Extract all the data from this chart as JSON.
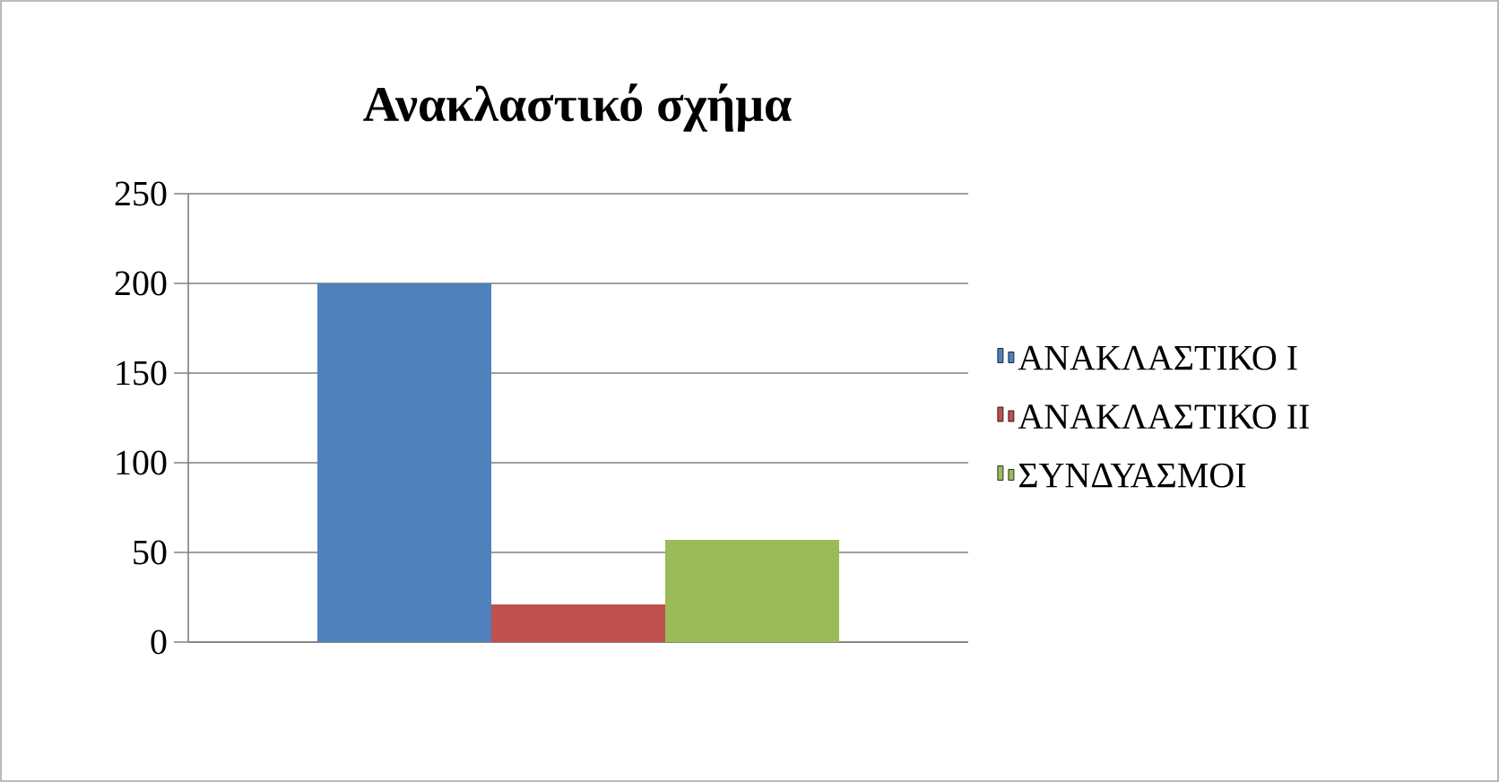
{
  "chart_data": {
    "type": "bar",
    "title": "Ανακλαστικό σχήμα",
    "categories": [
      null
    ],
    "series": [
      {
        "name": "ΑΝΑΚΛΑΣΤΙΚΟ Ι",
        "color": "#4f81bd",
        "values": [
          200
        ]
      },
      {
        "name": "ΑΝΑΚΛΑΣΤΙΚΟ ΙΙ",
        "color": "#c0504d",
        "values": [
          21
        ]
      },
      {
        "name": "ΣΥΝΔΥΑΣΜΟΙ",
        "color": "#9bbb59",
        "values": [
          57
        ]
      }
    ],
    "ylim": [
      0,
      250
    ],
    "yticks": [
      0,
      50,
      100,
      150,
      200,
      250
    ],
    "grid": "y",
    "legend": "right"
  }
}
